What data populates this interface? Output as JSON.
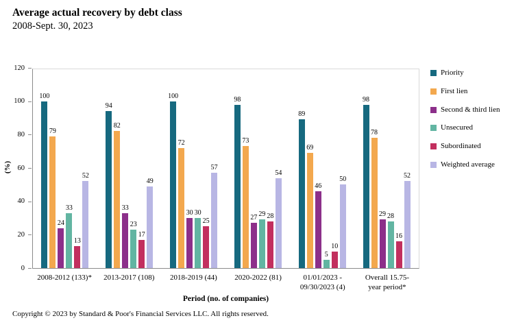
{
  "chart_data": {
    "type": "bar",
    "title": "Average actual recovery by debt class",
    "subtitle": "2008-Sept. 30, 2023",
    "categories": [
      "2008-2012 (133)*",
      "2013-2017 (108)",
      "2018-2019 (44)",
      "2020-2022 (81)",
      "01/01/2023 -\n09/30/2023 (4)",
      "Overall 15.75-\nyear period*"
    ],
    "series": [
      {
        "name": "Priority",
        "color": "#16697f",
        "values": [
          100,
          94,
          100,
          98,
          89,
          98
        ]
      },
      {
        "name": "First lien",
        "color": "#f3a84e",
        "values": [
          79,
          82,
          72,
          73,
          69,
          78
        ]
      },
      {
        "name": "Second & third lien",
        "color": "#8c2f8a",
        "values": [
          24,
          33,
          30,
          27,
          46,
          29
        ]
      },
      {
        "name": "Unsecured",
        "color": "#62b5a2",
        "values": [
          33,
          23,
          30,
          29,
          5,
          28
        ]
      },
      {
        "name": "Subordinated",
        "color": "#c22f5e",
        "values": [
          13,
          17,
          25,
          28,
          10,
          16
        ]
      },
      {
        "name": "Weighted average",
        "color": "#b8b6e4",
        "values": [
          52,
          49,
          57,
          54,
          50,
          52
        ]
      }
    ],
    "xlabel": "Period (no. of companies)",
    "ylabel": "(%)",
    "ylim": [
      0,
      120
    ],
    "yticks": [
      0,
      20,
      40,
      60,
      80,
      100,
      120
    ],
    "grid": false,
    "legend_position": "right"
  },
  "footer": {
    "copyright": "Copyright © 2023 by Standard & Poor's Financial Services LLC. All rights reserved."
  }
}
